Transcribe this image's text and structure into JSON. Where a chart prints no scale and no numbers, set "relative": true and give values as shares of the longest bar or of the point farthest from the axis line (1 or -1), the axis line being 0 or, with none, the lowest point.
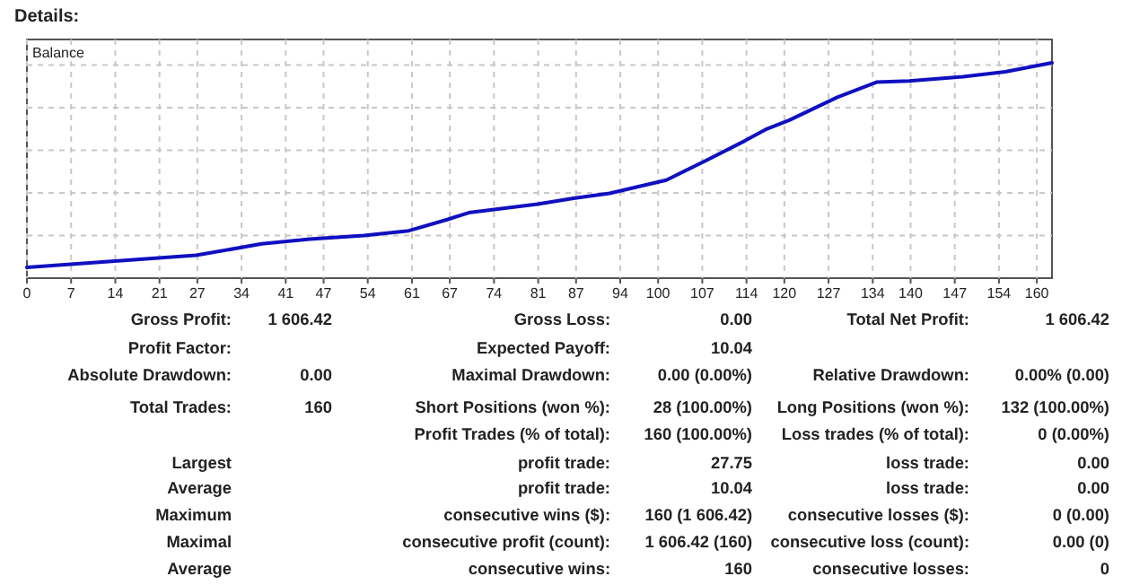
{
  "chart_data": {
    "type": "line",
    "title": "Details:",
    "relative": true,
    "grid": true,
    "xlim": [
      0,
      162.4
    ],
    "xticks": [
      0,
      7,
      14,
      21,
      27,
      34,
      41,
      47,
      54,
      61,
      67,
      74,
      81,
      87,
      94,
      100,
      107,
      114,
      120,
      127,
      134,
      140,
      147,
      154,
      160
    ],
    "series": [
      {
        "color": "#1010c0",
        "x": [
          0,
          26.8,
          37.2,
          44.8,
          53.4,
          60.5,
          66.7,
          70,
          80.9,
          86.6,
          92.3,
          101.3,
          107.5,
          113.7,
          117,
          120.8,
          128.4,
          134.6,
          139.8,
          148.3,
          155,
          162.4
        ],
        "values": [
          0.05,
          0.106,
          0.159,
          0.181,
          0.198,
          0.22,
          0.273,
          0.304,
          0.344,
          0.371,
          0.394,
          0.455,
          0.545,
          0.637,
          0.69,
          0.734,
          0.84,
          0.91,
          0.916,
          0.935,
          0.958,
          1
        ]
      }
    ],
    "annotations": [
      "Balance",
      "Gross Profit:\t1 606.42\tGross Loss:\t0.00\tTotal Net Profit:\t1 606.42",
      "Profit Factor:\t\tExpected Payoff:\t10.04\t\t",
      "Absolute Drawdown:\t0.00\tMaximal Drawdown:\t0.00 (0.00%)\tRelative Drawdown:\t0.00% (0.00)",
      "Total Trades:\t160\tShort Positions (won %):\t28 (100.00%)\tLong Positions (won %):\t132 (100.00%)",
      "\t\tProfit Trades (% of total):\t160 (100.00%)\tLoss trades (% of total):\t0 (0.00%)",
      "Largest\t\tprofit trade:\t27.75\tloss trade:\t0.00",
      "Average\t\tprofit trade:\t10.04\tloss trade:\t0.00",
      "Maximum\t\tconsecutive wins ($):\t160 (1 606.42)\tconsecutive losses ($):\t0 (0.00)",
      "Maximal\t\tconsecutive profit (count):\t1 606.42 (160)\tconsecutive loss (count):\t0.00 (0)",
      "Average\t\tconsecutive wins:\t160\tconsecutive losses:\t0"
    ]
  }
}
